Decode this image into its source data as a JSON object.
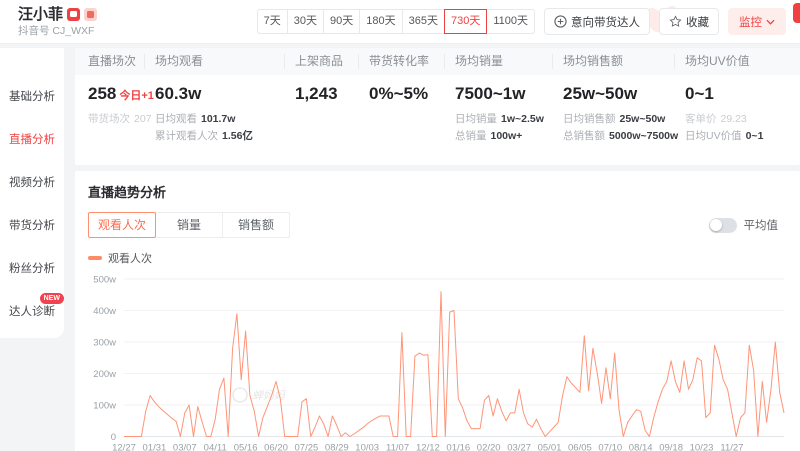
{
  "header": {
    "name": "汪小菲",
    "account_label": "抖音号 CJ_WXF",
    "range_options": [
      "7天",
      "30天",
      "90天",
      "180天",
      "365天",
      "730天",
      "1100天"
    ],
    "range_selected": "730天",
    "intent_button": "意向带货达人",
    "favorite_button": "收藏",
    "monitor_button": "监控"
  },
  "sidebar": {
    "items": [
      {
        "label": "基础分析",
        "active": false,
        "badge": ""
      },
      {
        "label": "直播分析",
        "active": true,
        "badge": ""
      },
      {
        "label": "视频分析",
        "active": false,
        "badge": ""
      },
      {
        "label": "带货分析",
        "active": false,
        "badge": ""
      },
      {
        "label": "粉丝分析",
        "active": false,
        "badge": ""
      },
      {
        "label": "达人诊断",
        "active": false,
        "badge": "NEW"
      }
    ]
  },
  "stats": {
    "columns": [
      {
        "label": "直播场次",
        "value": "258",
        "value_tag": "今日+1",
        "subs": [
          {
            "k": "带货场次",
            "v": "207",
            "muted": true
          }
        ]
      },
      {
        "label": "场均观看",
        "value": "60.3w",
        "value_tag": "",
        "subs": [
          {
            "k": "日均观看",
            "v": "101.7w",
            "muted": false
          },
          {
            "k": "累计观看人次",
            "v": "1.56亿",
            "muted": false
          }
        ]
      },
      {
        "label": "上架商品",
        "value": "1,243",
        "value_tag": "",
        "subs": []
      },
      {
        "label": "带货转化率",
        "value": "0%~5%",
        "value_tag": "",
        "subs": []
      },
      {
        "label": "场均销量",
        "value": "7500~1w",
        "value_tag": "",
        "subs": [
          {
            "k": "日均销量",
            "v": "1w~2.5w",
            "muted": false
          },
          {
            "k": "总销量",
            "v": "100w+",
            "muted": false
          }
        ]
      },
      {
        "label": "场均销售额",
        "value": "25w~50w",
        "value_tag": "",
        "subs": [
          {
            "k": "日均销售额",
            "v": "25w~50w",
            "muted": false
          },
          {
            "k": "总销售额",
            "v": "5000w~7500w",
            "muted": false
          }
        ]
      },
      {
        "label": "场均UV价值",
        "value": "0~1",
        "value_tag": "",
        "subs": [
          {
            "k": "客单价",
            "v": "29.23",
            "muted": true
          },
          {
            "k": "日均UV价值",
            "v": "0~1",
            "muted": false
          }
        ]
      }
    ]
  },
  "trend": {
    "title": "直播趋势分析",
    "tabs": [
      "观看人次",
      "销量",
      "销售额"
    ],
    "active_tab": "观看人次",
    "avg_toggle_label": "平均值",
    "avg_toggle_on": false,
    "legend": "观看人次",
    "watermark": "蝉妈妈"
  },
  "chart_data": {
    "type": "line",
    "title": "直播趋势分析",
    "series_name": "观看人次",
    "y_unit": "w",
    "ylim": [
      0,
      500
    ],
    "y_ticks": [
      "500w",
      "400w",
      "300w",
      "200w",
      "100w",
      "0"
    ],
    "x_tick_labels": [
      "12/27",
      "01/31",
      "03/07",
      "04/11",
      "05/16",
      "06/20",
      "07/25",
      "08/29",
      "10/03",
      "11/07",
      "12/12",
      "01/16",
      "02/20",
      "03/27",
      "05/01",
      "06/05",
      "07/10",
      "08/14",
      "09/18",
      "10/23",
      "11/27"
    ],
    "points_per_tick": 7,
    "grid": true,
    "legend_position": "top-left",
    "line_color": "#ff9478",
    "values": [
      0,
      0,
      0,
      0,
      0,
      80,
      130,
      110,
      95,
      82,
      70,
      58,
      48,
      0,
      75,
      100,
      0,
      95,
      45,
      0,
      0,
      55,
      150,
      185,
      0,
      280,
      390,
      180,
      335,
      130,
      80,
      0,
      60,
      95,
      130,
      175,
      120,
      0,
      0,
      0,
      0,
      110,
      120,
      0,
      30,
      65,
      40,
      0,
      65,
      35,
      0,
      12,
      0,
      8,
      18,
      28,
      40,
      50,
      58,
      65,
      65,
      65,
      0,
      0,
      330,
      0,
      0,
      255,
      265,
      258,
      260,
      0,
      0,
      460,
      0,
      395,
      400,
      120,
      90,
      50,
      25,
      25,
      25,
      115,
      130,
      65,
      120,
      80,
      50,
      75,
      75,
      150,
      75,
      40,
      30,
      55,
      25,
      0,
      15,
      30,
      45,
      130,
      190,
      170,
      155,
      140,
      320,
      145,
      280,
      200,
      105,
      218,
      120,
      265,
      85,
      0,
      45,
      65,
      85,
      80,
      20,
      0,
      60,
      110,
      150,
      175,
      240,
      175,
      140,
      240,
      150,
      180,
      250,
      240,
      60,
      75,
      290,
      245,
      180,
      150,
      75,
      0,
      60,
      75,
      290,
      210,
      0,
      175,
      45,
      150,
      300,
      140,
      75
    ]
  },
  "colors": {
    "accent": "#f04142",
    "tab_active": "#ff6b4a",
    "line": "#ff9478"
  }
}
